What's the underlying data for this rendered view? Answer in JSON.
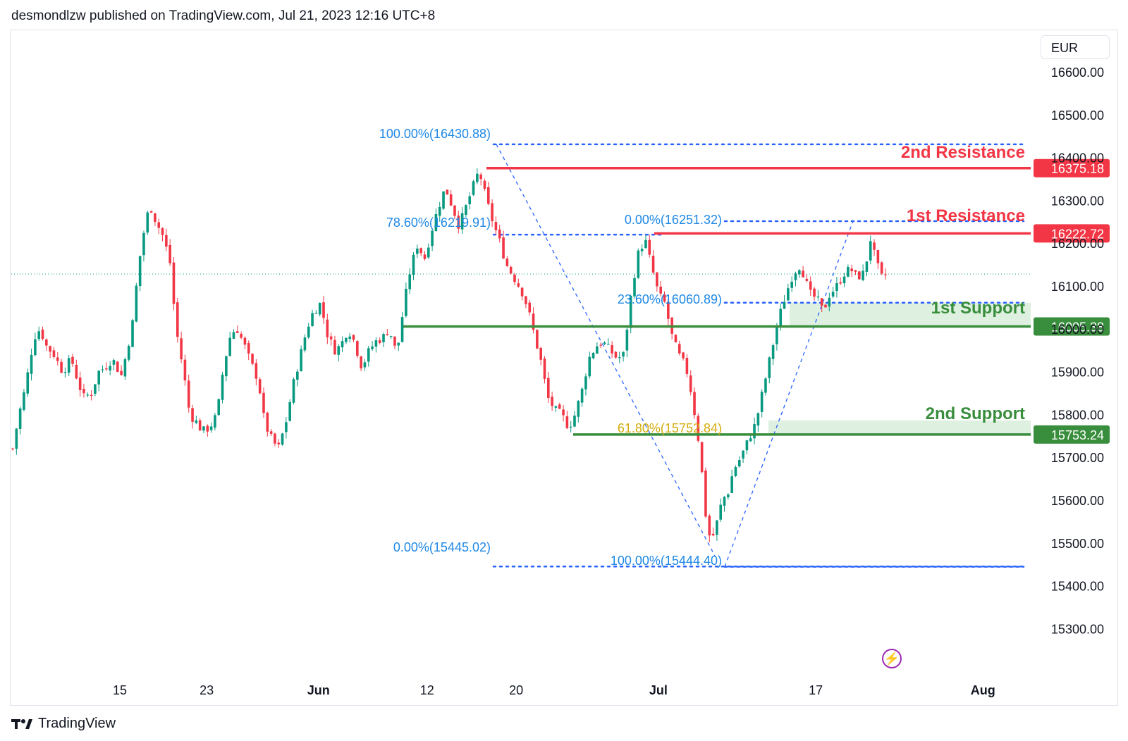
{
  "header": {
    "published": "desmondlzw published on TradingView.com, Jul 21, 2023 12:16 UTC+8"
  },
  "footer": {
    "brand": "TradingView"
  },
  "currency": "EUR",
  "chart_data": {
    "type": "candlestick",
    "currency": "EUR",
    "ylim": [
      15200,
      16680
    ],
    "y_ticks": [
      "16600.00",
      "16500.00",
      "16400.00",
      "16300.00",
      "16200.00",
      "16100.00",
      "16000.00",
      "15900.00",
      "15800.00",
      "15700.00",
      "15600.00",
      "15500.00",
      "15400.00",
      "15300.00"
    ],
    "x_ticks": [
      "15",
      "23",
      "Jun",
      "12",
      "20",
      "Jul",
      "17",
      "Aug"
    ],
    "last_price_level": 16128,
    "candle_path": [
      [
        0,
        15720
      ],
      [
        5,
        15800
      ],
      [
        10,
        15860
      ],
      [
        17,
        15980
      ],
      [
        22,
        16000
      ],
      [
        27,
        15960
      ],
      [
        33,
        15940
      ],
      [
        40,
        15900
      ],
      [
        47,
        15930
      ],
      [
        53,
        15870
      ],
      [
        57,
        15840
      ],
      [
        63,
        15850
      ],
      [
        69,
        15900
      ],
      [
        74,
        15910
      ],
      [
        80,
        15930
      ],
      [
        87,
        15890
      ],
      [
        91,
        15940
      ],
      [
        96,
        16010
      ],
      [
        101,
        16150
      ],
      [
        106,
        16240
      ],
      [
        110,
        16290
      ],
      [
        115,
        16250
      ],
      [
        120,
        16220
      ],
      [
        126,
        16160
      ],
      [
        131,
        16000
      ],
      [
        137,
        15900
      ],
      [
        142,
        15800
      ],
      [
        148,
        15780
      ],
      [
        152,
        15760
      ],
      [
        158,
        15770
      ],
      [
        164,
        15800
      ],
      [
        169,
        15910
      ],
      [
        175,
        15990
      ],
      [
        180,
        16000
      ],
      [
        186,
        15960
      ],
      [
        191,
        15920
      ],
      [
        197,
        15880
      ],
      [
        202,
        15780
      ],
      [
        208,
        15740
      ],
      [
        213,
        15720
      ],
      [
        219,
        15780
      ],
      [
        225,
        15870
      ],
      [
        230,
        15930
      ],
      [
        236,
        16000
      ],
      [
        241,
        16040
      ],
      [
        247,
        16060
      ],
      [
        252,
        15990
      ],
      [
        258,
        15950
      ],
      [
        263,
        15960
      ],
      [
        269,
        16000
      ],
      [
        274,
        15970
      ],
      [
        280,
        15910
      ],
      [
        286,
        15950
      ],
      [
        291,
        15970
      ],
      [
        297,
        15980
      ],
      [
        302,
        16000
      ],
      [
        308,
        15940
      ],
      [
        314,
        16060
      ],
      [
        319,
        16140
      ],
      [
        325,
        16200
      ],
      [
        330,
        16160
      ],
      [
        336,
        16230
      ],
      [
        341,
        16280
      ],
      [
        347,
        16330
      ],
      [
        352,
        16290
      ],
      [
        358,
        16240
      ],
      [
        363,
        16280
      ],
      [
        369,
        16330
      ],
      [
        374,
        16370
      ],
      [
        380,
        16300
      ],
      [
        385,
        16250
      ],
      [
        391,
        16200
      ],
      [
        396,
        16150
      ],
      [
        402,
        16120
      ],
      [
        408,
        16090
      ],
      [
        413,
        16050
      ],
      [
        418,
        15990
      ],
      [
        424,
        15920
      ],
      [
        429,
        15840
      ],
      [
        435,
        15810
      ],
      [
        440,
        15800
      ],
      [
        446,
        15770
      ],
      [
        451,
        15800
      ],
      [
        457,
        15860
      ],
      [
        462,
        15930
      ],
      [
        468,
        15960
      ],
      [
        473,
        15970
      ],
      [
        479,
        15950
      ],
      [
        485,
        15930
      ],
      [
        490,
        15940
      ],
      [
        496,
        16080
      ],
      [
        501,
        16170
      ],
      [
        507,
        16210
      ],
      [
        512,
        16150
      ],
      [
        518,
        16080
      ],
      [
        523,
        16060
      ],
      [
        529,
        15980
      ],
      [
        534,
        15940
      ],
      [
        540,
        15910
      ],
      [
        545,
        15840
      ],
      [
        551,
        15720
      ],
      [
        556,
        15560
      ],
      [
        560,
        15500
      ],
      [
        565,
        15550
      ],
      [
        569,
        15600
      ],
      [
        574,
        15620
      ],
      [
        578,
        15670
      ],
      [
        584,
        15700
      ],
      [
        590,
        15740
      ],
      [
        596,
        15780
      ],
      [
        602,
        15860
      ],
      [
        608,
        15940
      ],
      [
        614,
        16020
      ],
      [
        620,
        16080
      ],
      [
        626,
        16130
      ],
      [
        632,
        16150
      ],
      [
        636,
        16110
      ],
      [
        640,
        16080
      ],
      [
        645,
        16070
      ],
      [
        650,
        16040
      ],
      [
        655,
        16080
      ],
      [
        661,
        16100
      ],
      [
        667,
        16130
      ],
      [
        672,
        16140
      ],
      [
        677,
        16120
      ],
      [
        683,
        16130
      ],
      [
        688,
        16210
      ],
      [
        693,
        16150
      ],
      [
        697,
        16120
      ],
      [
        700,
        16126
      ]
    ],
    "levels": [
      {
        "name": "2nd Resistance",
        "value": 16375.18,
        "label": "16375.18",
        "color": "#f23645"
      },
      {
        "name": "1st Resistance",
        "value": 16222.72,
        "label": "16222.72",
        "color": "#f23645"
      },
      {
        "name": "1st Support",
        "value": 16005.38,
        "label": "16005.38",
        "color": "#388e3c"
      },
      {
        "name": "2nd Support",
        "value": 15753.24,
        "label": "15753.24",
        "color": "#388e3c"
      }
    ],
    "fib_labels": [
      {
        "text": "100.00%(16430.88)",
        "value": 16430.88
      },
      {
        "text": "78.60%(16219.91)",
        "value": 16219.91
      },
      {
        "text": "0.00%(15445.02)",
        "value": 15445.02
      },
      {
        "text": "0.00%(16251.32)",
        "value": 16251.32
      },
      {
        "text": "23.60%(16060.89)",
        "value": 16060.89
      },
      {
        "text": "61.80%(15752.84)",
        "value": 15752.84
      },
      {
        "text": "100.00%(15444.40)",
        "value": 15444.4
      }
    ],
    "colors": {
      "up": "#089981",
      "down": "#f23645",
      "fib": "#2962ff",
      "support": "#388e3c",
      "resistance": "#f23645"
    }
  }
}
